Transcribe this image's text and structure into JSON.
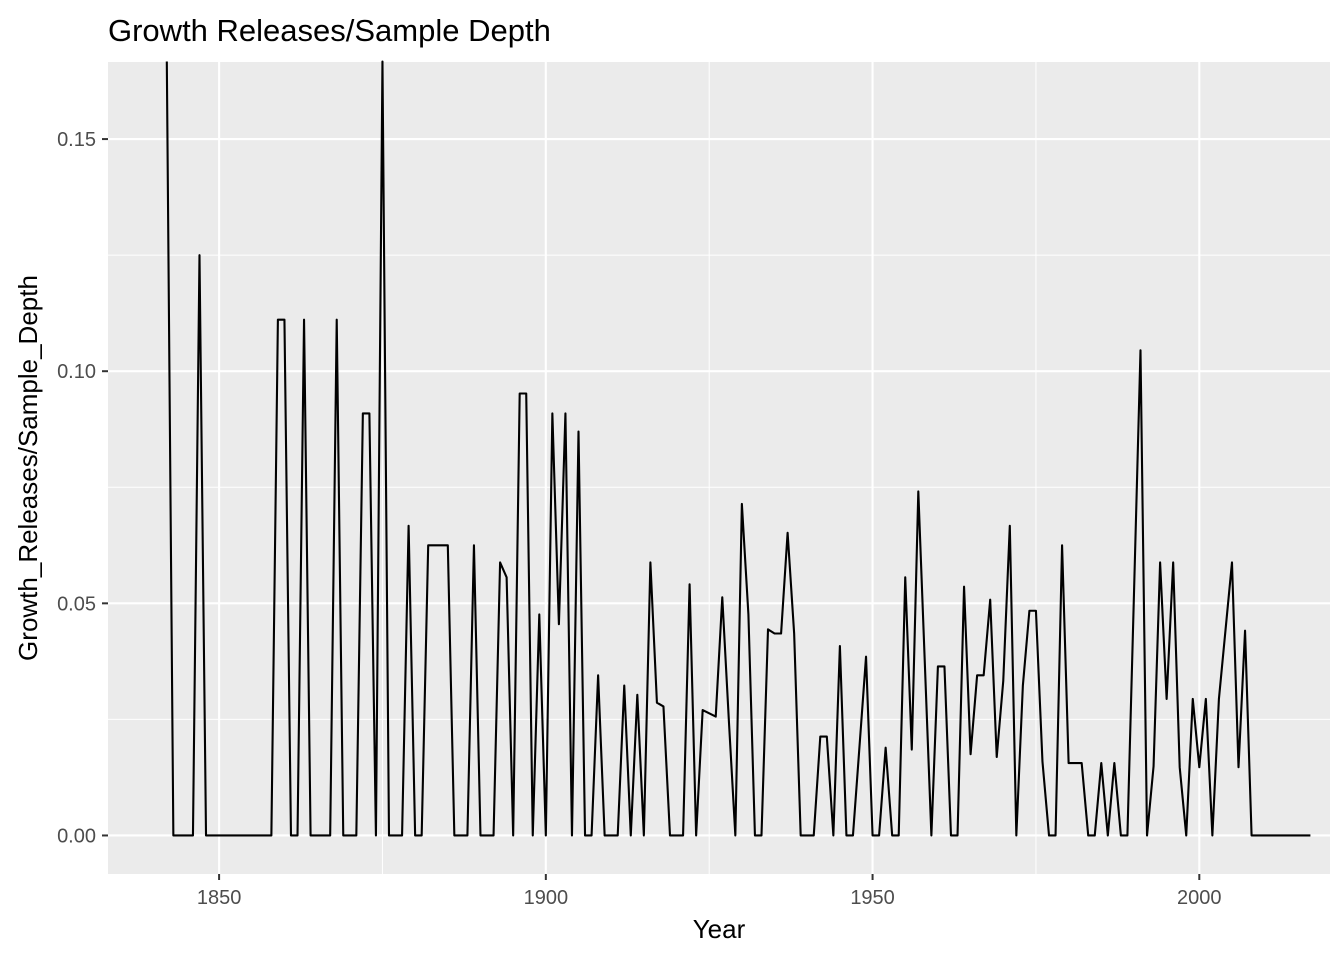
{
  "chart_data": {
    "type": "line",
    "title": "Growth Releases/Sample Depth",
    "xlabel": "Year",
    "ylabel": "Growth_Releases/Sample_Depth",
    "xlim": [
      1833,
      2020
    ],
    "ylim": [
      -0.0083,
      0.1666
    ],
    "x_ticks": [
      1850,
      1900,
      1950,
      2000
    ],
    "x_tick_labels": [
      "1850",
      "1900",
      "1950",
      "2000"
    ],
    "y_ticks": [
      0,
      0.05,
      0.1,
      0.15
    ],
    "y_tick_labels": [
      "0.00",
      "0.05",
      "0.10",
      "0.15"
    ],
    "grid": true,
    "legend": "none",
    "colors": {
      "panel_background": "#ebebeb",
      "grid": "#ffffff",
      "line": "#000000",
      "tick_label": "#4d4d4d"
    },
    "series": [
      {
        "x": [
          1842,
          1843,
          1844,
          1845,
          1846,
          1847,
          1848,
          1849,
          1850,
          1851,
          1852,
          1853,
          1854,
          1855,
          1856,
          1857,
          1858,
          1859,
          1860,
          1861,
          1862,
          1863,
          1864,
          1865,
          1866,
          1867,
          1868,
          1869,
          1870,
          1871,
          1872,
          1873,
          1874,
          1875,
          1876,
          1877,
          1878,
          1879,
          1880,
          1881,
          1882,
          1883,
          1884,
          1885,
          1886,
          1887,
          1888,
          1889,
          1890,
          1891,
          1892,
          1893,
          1894,
          1895,
          1896,
          1897,
          1898,
          1899,
          1900,
          1901,
          1902,
          1903,
          1904,
          1905,
          1906,
          1907,
          1908,
          1909,
          1910,
          1911,
          1912,
          1913,
          1914,
          1915,
          1916,
          1917,
          1918,
          1919,
          1920,
          1921,
          1922,
          1923,
          1924,
          1925,
          1926,
          1927,
          1928,
          1929,
          1930,
          1931,
          1932,
          1933,
          1934,
          1935,
          1936,
          1937,
          1938,
          1939,
          1940,
          1941,
          1942,
          1943,
          1944,
          1945,
          1946,
          1947,
          1948,
          1949,
          1950,
          1951,
          1952,
          1953,
          1954,
          1955,
          1956,
          1957,
          1958,
          1959,
          1960,
          1961,
          1962,
          1963,
          1964,
          1965,
          1966,
          1967,
          1968,
          1969,
          1970,
          1971,
          1972,
          1973,
          1974,
          1975,
          1976,
          1977,
          1978,
          1979,
          1980,
          1981,
          1982,
          1983,
          1984,
          1985,
          1986,
          1987,
          1988,
          1989,
          1990,
          1991,
          1992,
          1993,
          1994,
          1995,
          1996,
          1997,
          1998,
          1999,
          2000,
          2001,
          2002,
          2003,
          2004,
          2005,
          2006,
          2007,
          2008,
          2009,
          2010,
          2011,
          2012,
          2013,
          2014,
          2015,
          2016,
          2017
        ],
        "y": [
          0.1667,
          0,
          0,
          0,
          0,
          0.125,
          0,
          0,
          0,
          0,
          0,
          0,
          0,
          0,
          0,
          0,
          0,
          0.1111,
          0.1111,
          0,
          0,
          0.1111,
          0,
          0,
          0,
          0,
          0.1111,
          0,
          0,
          0,
          0.0909,
          0.0909,
          0,
          0.1667,
          0,
          0,
          0,
          0.0667,
          0,
          0,
          0.0625,
          0.0625,
          0.0625,
          0.0625,
          0,
          0,
          0,
          0.0625,
          0,
          0,
          0,
          0.0588,
          0.0556,
          0,
          0.0952,
          0.0952,
          0,
          0.0476,
          0,
          0.0909,
          0.0455,
          0.0909,
          0,
          0.087,
          0,
          0,
          0.0345,
          0,
          0,
          0,
          0.0323,
          0,
          0.0303,
          0,
          0.0588,
          0.0286,
          0.0278,
          0,
          0,
          0,
          0.0541,
          0,
          0.027,
          0.0263,
          0.0256,
          0.0513,
          0.025,
          0,
          0.0714,
          0.0476,
          0,
          0,
          0.0444,
          0.0435,
          0.0435,
          0.0652,
          0.0435,
          0,
          0,
          0,
          0.0213,
          0.0213,
          0,
          0.0408,
          0,
          0,
          0.0192,
          0.0385,
          0,
          0,
          0.0189,
          0,
          0,
          0.0556,
          0.0185,
          0.0741,
          0.037,
          0,
          0.0364,
          0.0364,
          0,
          0,
          0.0536,
          0.0175,
          0.0345,
          0.0345,
          0.0508,
          0.0169,
          0.0333,
          0.0667,
          0,
          0.0323,
          0.0484,
          0.0484,
          0.0159,
          0,
          0,
          0.0625,
          0.0156,
          0.0156,
          0.0156,
          0,
          0,
          0.0156,
          0,
          0.0156,
          0,
          0,
          0.0519,
          0.1045,
          0,
          0.0149,
          0.0588,
          0.0294,
          0.0588,
          0.0147,
          0,
          0.0294,
          0.0147,
          0.0294,
          0,
          0.0294,
          0.0441,
          0.0588,
          0.0147,
          0.0441,
          0,
          0,
          0,
          0,
          0,
          0,
          0,
          0,
          0,
          0
        ]
      }
    ]
  }
}
